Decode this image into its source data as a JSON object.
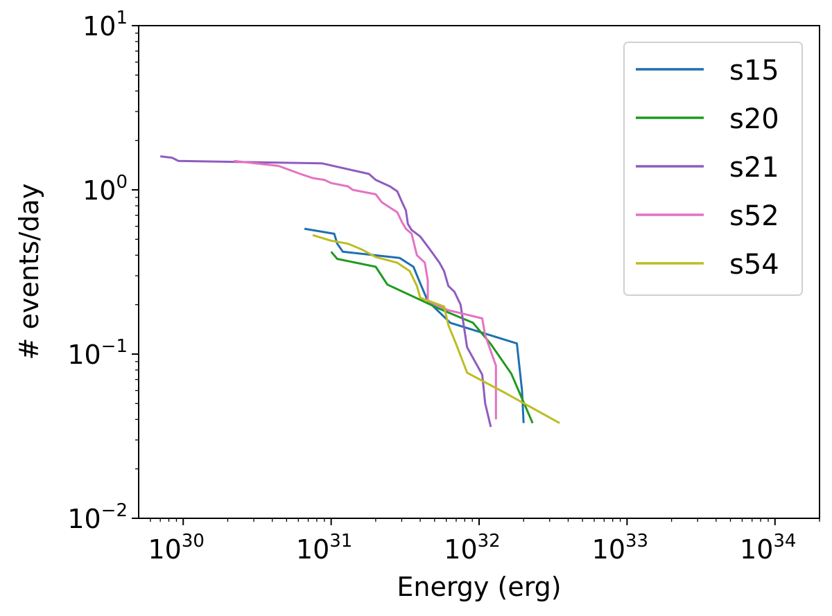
{
  "chart_data": {
    "type": "line",
    "xscale": "log",
    "yscale": "log",
    "xlabel": "Energy (erg)",
    "ylabel": "# events/day",
    "xlim": [
      5e+29,
      2e+34
    ],
    "ylim": [
      0.01,
      10
    ],
    "x_ticks": [
      {
        "value": 1e+30,
        "base": "10",
        "exp": "30"
      },
      {
        "value": 1e+31,
        "base": "10",
        "exp": "31"
      },
      {
        "value": 1e+32,
        "base": "10",
        "exp": "32"
      },
      {
        "value": 1e+33,
        "base": "10",
        "exp": "33"
      },
      {
        "value": 1e+34,
        "base": "10",
        "exp": "34"
      }
    ],
    "y_ticks": [
      {
        "value": 0.01,
        "base": "10",
        "exp": "−2"
      },
      {
        "value": 0.1,
        "base": "10",
        "exp": "−1"
      },
      {
        "value": 1,
        "base": "10",
        "exp": "0"
      },
      {
        "value": 10,
        "base": "10",
        "exp": "1"
      }
    ],
    "legend_position": "top-right",
    "series": [
      {
        "name": "s15",
        "color": "#1f6fb0",
        "points": [
          [
            6.6e+30,
            0.58
          ],
          [
            1.05e+31,
            0.54
          ],
          [
            1.1e+31,
            0.47
          ],
          [
            1.2e+31,
            0.42
          ],
          [
            2.9e+31,
            0.385
          ],
          [
            3.6e+31,
            0.34
          ],
          [
            4e+31,
            0.27
          ],
          [
            4.5e+31,
            0.21
          ],
          [
            6.4e+31,
            0.155
          ],
          [
            1.8e+32,
            0.116
          ],
          [
            1.95e+32,
            0.06
          ],
          [
            2e+32,
            0.038
          ]
        ]
      },
      {
        "name": "s20",
        "color": "#1f9a1f",
        "points": [
          [
            1e+31,
            0.42
          ],
          [
            1.1e+31,
            0.38
          ],
          [
            2e+31,
            0.34
          ],
          [
            2.4e+31,
            0.265
          ],
          [
            5.3e+31,
            0.19
          ],
          [
            9.1e+31,
            0.155
          ],
          [
            1.2e+32,
            0.115
          ],
          [
            1.65e+32,
            0.076
          ],
          [
            2.3e+32,
            0.038
          ]
        ]
      },
      {
        "name": "s21",
        "color": "#8e5cbf",
        "points": [
          [
            7e+29,
            1.6
          ],
          [
            8.4e+29,
            1.57
          ],
          [
            9.3e+29,
            1.5
          ],
          [
            8.7e+30,
            1.45
          ],
          [
            1.8e+31,
            1.25
          ],
          [
            2e+31,
            1.15
          ],
          [
            2.5e+31,
            1.05
          ],
          [
            2.8e+31,
            0.98
          ],
          [
            3e+31,
            0.85
          ],
          [
            3.2e+31,
            0.75
          ],
          [
            3.3e+31,
            0.62
          ],
          [
            3.5e+31,
            0.57
          ],
          [
            4e+31,
            0.52
          ],
          [
            4.6e+31,
            0.44
          ],
          [
            5.4e+31,
            0.36
          ],
          [
            5.8e+31,
            0.32
          ],
          [
            6.2e+31,
            0.26
          ],
          [
            6.8e+31,
            0.24
          ],
          [
            7.5e+31,
            0.2
          ],
          [
            8.3e+31,
            0.11
          ],
          [
            1.05e+32,
            0.075
          ],
          [
            1.1e+32,
            0.05
          ],
          [
            1.2e+32,
            0.036
          ]
        ]
      },
      {
        "name": "s52",
        "color": "#e472c1",
        "points": [
          [
            2.2e+30,
            1.5
          ],
          [
            4.4e+30,
            1.4
          ],
          [
            6.2e+30,
            1.25
          ],
          [
            7.5e+30,
            1.18
          ],
          [
            9e+30,
            1.15
          ],
          [
            1e+31,
            1.1
          ],
          [
            1.3e+31,
            1.05
          ],
          [
            1.4e+31,
            1.0
          ],
          [
            2e+31,
            0.94
          ],
          [
            2.2e+31,
            0.84
          ],
          [
            2.5e+31,
            0.78
          ],
          [
            2.8e+31,
            0.73
          ],
          [
            3e+31,
            0.64
          ],
          [
            3.2e+31,
            0.58
          ],
          [
            3.5e+31,
            0.54
          ],
          [
            3.8e+31,
            0.4
          ],
          [
            4.3e+31,
            0.36
          ],
          [
            4.5e+31,
            0.28
          ],
          [
            4.5e+31,
            0.21
          ],
          [
            6.2e+31,
            0.185
          ],
          [
            1.05e+32,
            0.165
          ],
          [
            1.1e+32,
            0.13
          ],
          [
            1.3e+32,
            0.085
          ],
          [
            1.3e+32,
            0.04
          ]
        ]
      },
      {
        "name": "s54",
        "color": "#bcbd22",
        "points": [
          [
            7.5e+30,
            0.53
          ],
          [
            1e+31,
            0.49
          ],
          [
            1.3e+31,
            0.47
          ],
          [
            1.6e+31,
            0.435
          ],
          [
            2e+31,
            0.39
          ],
          [
            2.8e+31,
            0.36
          ],
          [
            3.4e+31,
            0.32
          ],
          [
            3.8e+31,
            0.26
          ],
          [
            4e+31,
            0.22
          ],
          [
            5.8e+31,
            0.195
          ],
          [
            6.2e+31,
            0.15
          ],
          [
            7e+31,
            0.115
          ],
          [
            8.3e+31,
            0.077
          ],
          [
            1.5e+32,
            0.058
          ],
          [
            3.5e+32,
            0.038
          ]
        ]
      }
    ]
  }
}
